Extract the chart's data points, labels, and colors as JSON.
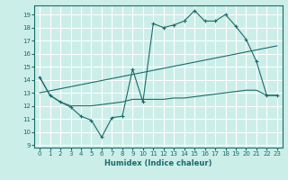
{
  "xlabel": "Humidex (Indice chaleur)",
  "background_color": "#cceee8",
  "grid_color": "#ffffff",
  "line_color": "#1a6b6b",
  "xlim": [
    -0.5,
    23.5
  ],
  "ylim": [
    8.8,
    19.7
  ],
  "yticks": [
    9,
    10,
    11,
    12,
    13,
    14,
    15,
    16,
    17,
    18,
    19
  ],
  "xticks": [
    0,
    1,
    2,
    3,
    4,
    5,
    6,
    7,
    8,
    9,
    10,
    11,
    12,
    13,
    14,
    15,
    16,
    17,
    18,
    19,
    20,
    21,
    22,
    23
  ],
  "series1_x": [
    0,
    1,
    2,
    3,
    4,
    5,
    6,
    7,
    8,
    9,
    10,
    11,
    12,
    13,
    14,
    15,
    16,
    17,
    18,
    19,
    20,
    21,
    22,
    23
  ],
  "series1_y": [
    14.2,
    12.8,
    12.3,
    11.9,
    11.2,
    10.9,
    9.6,
    11.1,
    11.2,
    14.8,
    12.3,
    18.3,
    18.0,
    18.2,
    18.5,
    19.3,
    18.5,
    18.5,
    19.0,
    18.1,
    17.1,
    15.4,
    12.8,
    12.8
  ],
  "series2_x": [
    0,
    23
  ],
  "series2_y": [
    13.0,
    16.6
  ],
  "series3_x": [
    0,
    1,
    2,
    3,
    4,
    5,
    6,
    7,
    8,
    9,
    10,
    11,
    12,
    13,
    14,
    15,
    16,
    17,
    18,
    19,
    20,
    21,
    22,
    23
  ],
  "series3_y": [
    14.2,
    12.8,
    12.3,
    12.0,
    12.0,
    12.0,
    12.1,
    12.2,
    12.3,
    12.5,
    12.5,
    12.5,
    12.5,
    12.6,
    12.6,
    12.7,
    12.8,
    12.9,
    13.0,
    13.1,
    13.2,
    13.2,
    12.8,
    12.8
  ]
}
